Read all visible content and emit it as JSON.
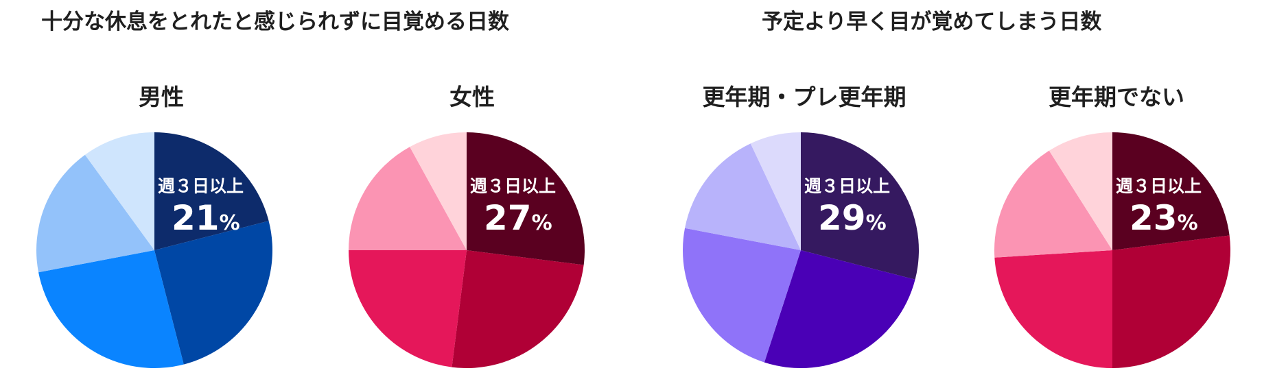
{
  "headings": {
    "left": "十分な休息をとれたと感じられずに目覚める日数",
    "right": "予定より早く目が覚めてしまう日数"
  },
  "chart_data": [
    {
      "type": "pie",
      "title": "男性",
      "highlight_label": "週３日以上",
      "highlight_value": "21",
      "highlight_unit": "%",
      "values": [
        21,
        25,
        26,
        18,
        10
      ],
      "colors": [
        "#0d2b6b",
        "#0047a5",
        "#0a84ff",
        "#93c2fa",
        "#cfe5fd"
      ]
    },
    {
      "type": "pie",
      "title": "女性",
      "highlight_label": "週３日以上",
      "highlight_value": "27",
      "highlight_unit": "%",
      "values": [
        27,
        25,
        23,
        17,
        8
      ],
      "colors": [
        "#5a0020",
        "#b00036",
        "#e5175a",
        "#fb94b3",
        "#ffd3da"
      ]
    },
    {
      "type": "pie",
      "title": "更年期・プレ更年期",
      "highlight_label": "週３日以上",
      "highlight_value": "29",
      "highlight_unit": "%",
      "values": [
        29,
        26,
        23,
        15,
        7
      ],
      "colors": [
        "#351960",
        "#4a00b6",
        "#8f73f9",
        "#b8b3fb",
        "#dcdafc"
      ]
    },
    {
      "type": "pie",
      "title": "更年期でない",
      "highlight_label": "週３日以上",
      "highlight_value": "23",
      "highlight_unit": "%",
      "values": [
        23,
        27,
        24,
        17,
        9
      ],
      "colors": [
        "#5a0020",
        "#b00036",
        "#e5175a",
        "#fb94b3",
        "#ffd3da"
      ]
    }
  ]
}
